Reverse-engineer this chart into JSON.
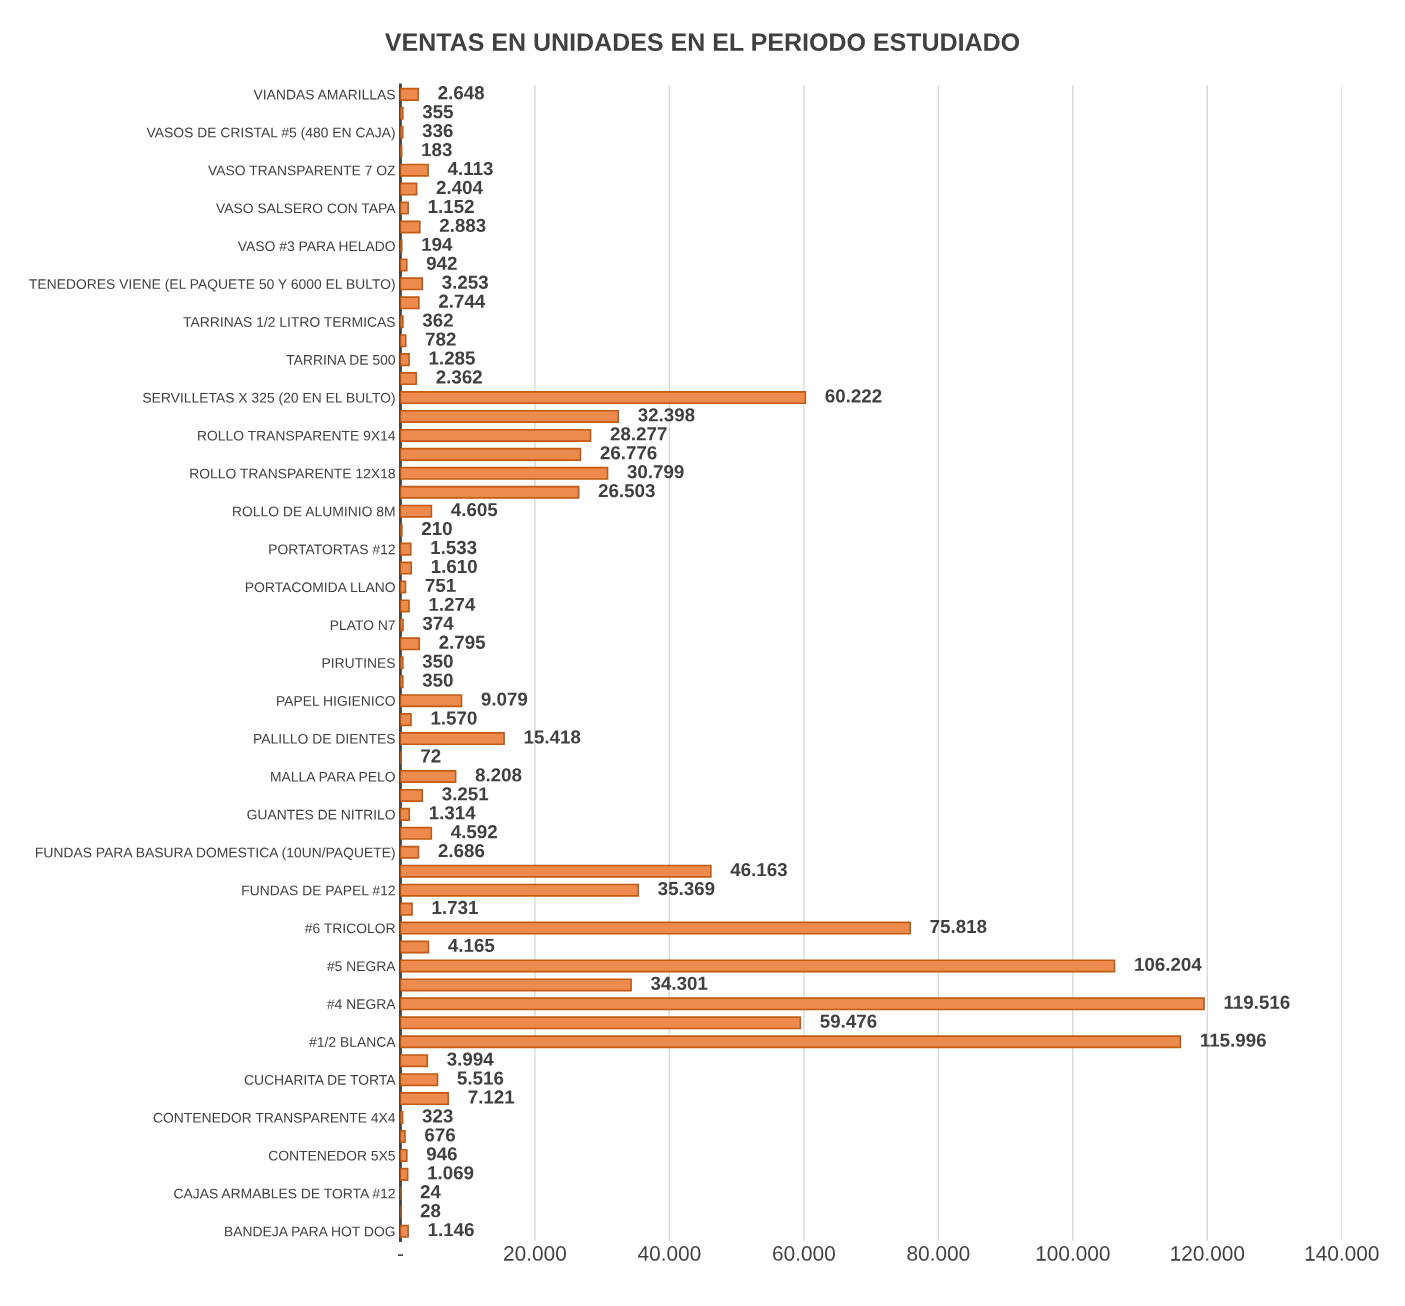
{
  "chart_data": {
    "type": "bar",
    "orientation": "horizontal",
    "title": "VENTAS EN UNIDADES EN EL PERIODO ESTUDIADO",
    "categories": [
      "VIANDAS AMARILLAS",
      null,
      "VASOS DE CRISTAL #5 (480 EN CAJA)",
      null,
      "VASO TRANSPARENTE 7 OZ",
      null,
      "VASO SALSERO CON TAPA",
      null,
      "VASO #3 PARA HELADO",
      null,
      "TENEDORES VIENE (EL PAQUETE 50 Y 6000 EL BULTO)",
      null,
      "TARRINAS 1/2 LITRO TERMICAS",
      null,
      "TARRINA DE 500",
      null,
      "SERVILLETAS X 325 (20 EN EL BULTO)",
      null,
      "ROLLO TRANSPARENTE 9X14",
      null,
      "ROLLO TRANSPARENTE 12X18",
      null,
      "ROLLO DE ALUMINIO 8M",
      null,
      "PORTATORTAS #12",
      null,
      "PORTACOMIDA LLANO",
      null,
      "PLATO N7",
      null,
      "PIRUTINES",
      null,
      "PAPEL HIGIENICO",
      null,
      "PALILLO DE DIENTES",
      null,
      "MALLA PARA PELO",
      null,
      "GUANTES DE NITRILO",
      null,
      "FUNDAS PARA BASURA DOMESTICA (10UN/PAQUETE)",
      null,
      "FUNDAS DE PAPEL #12",
      null,
      "#6 TRICOLOR",
      null,
      "#5 NEGRA",
      null,
      "#4 NEGRA",
      null,
      "#1/2 BLANCA",
      null,
      "CUCHARITA DE TORTA",
      null,
      "CONTENEDOR TRANSPARENTE 4X4",
      null,
      "CONTENEDOR 5X5",
      null,
      "CAJAS ARMABLES DE TORTA #12",
      null,
      "BANDEJA PARA HOT DOG"
    ],
    "values": [
      2648,
      355,
      336,
      183,
      4113,
      2404,
      1152,
      2883,
      194,
      942,
      3253,
      2744,
      362,
      782,
      1285,
      2362,
      60222,
      32398,
      28277,
      26776,
      30799,
      26503,
      4605,
      210,
      1533,
      1610,
      751,
      1274,
      374,
      2795,
      350,
      350,
      9079,
      1570,
      15418,
      72,
      8208,
      3251,
      1314,
      4592,
      2686,
      46163,
      35369,
      1731,
      75818,
      4165,
      106204,
      34301,
      119516,
      59476,
      115996,
      3994,
      5516,
      7121,
      323,
      676,
      946,
      1069,
      24,
      28,
      1146
    ],
    "value_labels": [
      "2.648",
      "355",
      "336",
      "183",
      "4.113",
      "2.404",
      "1.152",
      "2.883",
      "194",
      "942",
      "3.253",
      "2.744",
      "362",
      "782",
      "1.285",
      "2.362",
      "60.222",
      "32.398",
      "28.277",
      "26.776",
      "30.799",
      "26.503",
      "4.605",
      "210",
      "1.533",
      "1.610",
      "751",
      "1.274",
      "374",
      "2.795",
      "350",
      "350",
      "9.079",
      "1.570",
      "15.418",
      "72",
      "8.208",
      "3.251",
      "1.314",
      "4.592",
      "2.686",
      "46.163",
      "35.369",
      "1.731",
      "75.818",
      "4.165",
      "106.204",
      "34.301",
      "119.516",
      "59.476",
      "115.996",
      "3.994",
      "5.516",
      "7.121",
      "323",
      "676",
      "946",
      "1.069",
      "24",
      "28",
      "1.146"
    ],
    "color": "#ed8b4e",
    "xlim": [
      0,
      140000
    ],
    "xticks": [
      {
        "value": 0,
        "label": "-"
      },
      {
        "value": 20000,
        "label": "20.000"
      },
      {
        "value": 40000,
        "label": "40.000"
      },
      {
        "value": 60000,
        "label": "60.000"
      },
      {
        "value": 80000,
        "label": "80.000"
      },
      {
        "value": 100000,
        "label": "100.000"
      },
      {
        "value": 120000,
        "label": "120.000"
      },
      {
        "value": 140000,
        "label": "140.000"
      }
    ],
    "grid": "x",
    "legend": false
  }
}
